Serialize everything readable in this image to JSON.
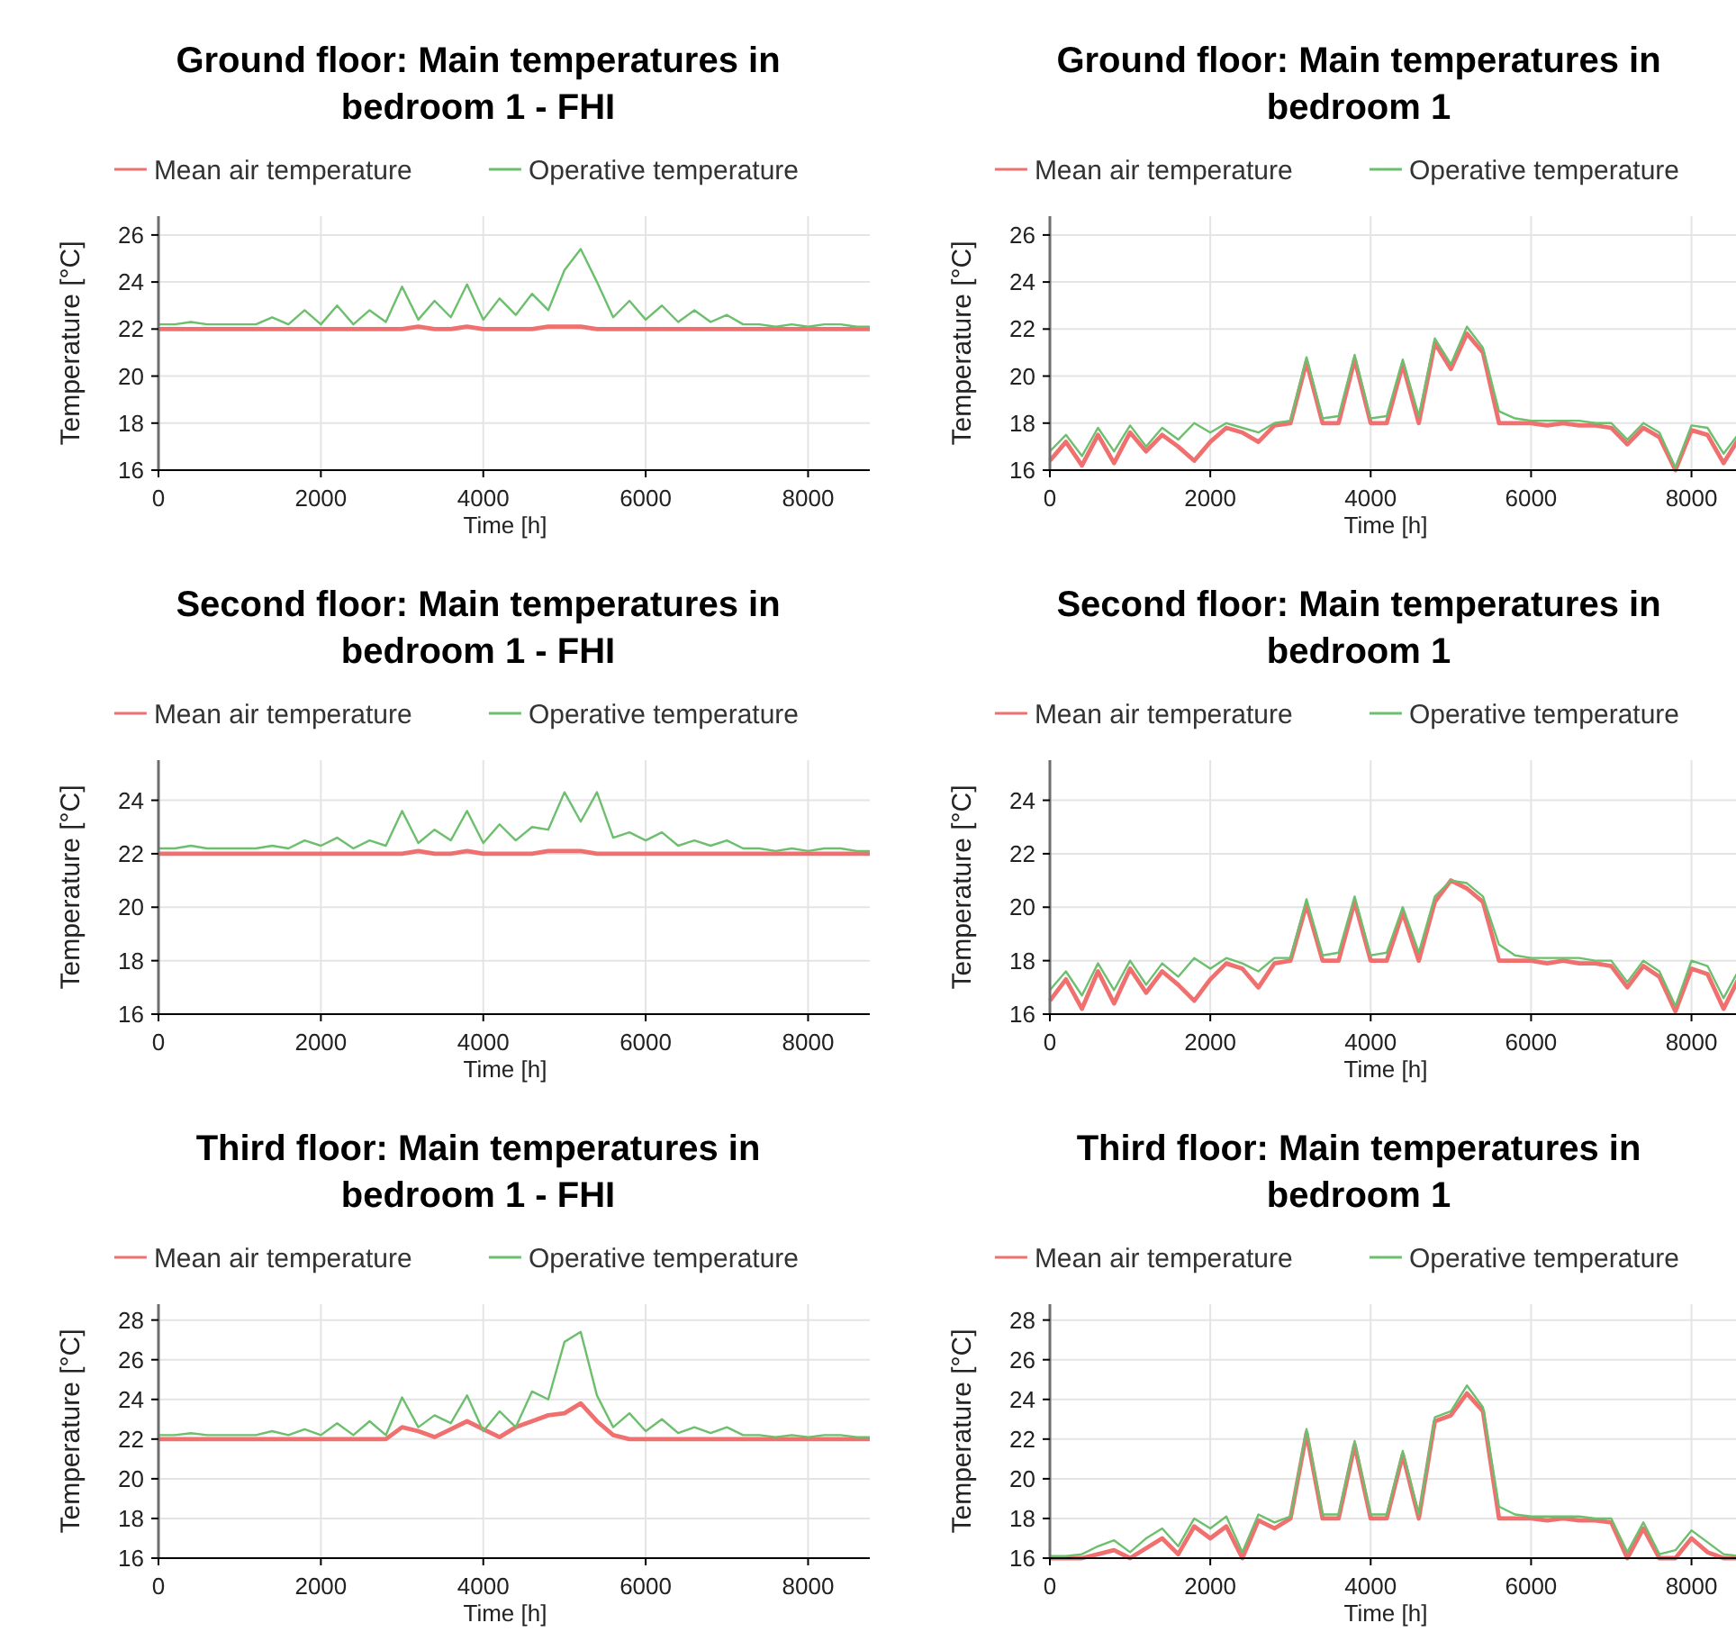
{
  "chart_data": [
    {
      "type": "line",
      "title": "Ground floor: Main temperatures in bedroom 1 - FHI",
      "xlabel": "Time [h]",
      "ylabel": "Temperature [°C]",
      "xlim": [
        0,
        8760
      ],
      "xticks": [
        0,
        2000,
        4000,
        6000,
        8000
      ],
      "ylim": [
        16,
        26.8
      ],
      "yticks": [
        16,
        18,
        20,
        22,
        24,
        26
      ],
      "grid": true,
      "legend": "top",
      "x": [
        0,
        200,
        400,
        600,
        800,
        1000,
        1200,
        1400,
        1600,
        1800,
        2000,
        2200,
        2400,
        2600,
        2800,
        3000,
        3200,
        3400,
        3600,
        3800,
        4000,
        4200,
        4400,
        4600,
        4800,
        5000,
        5200,
        5400,
        5600,
        5800,
        6000,
        6200,
        6400,
        6600,
        6800,
        7000,
        7200,
        7400,
        7600,
        7800,
        8000,
        8200,
        8400,
        8600,
        8760
      ],
      "series": [
        {
          "name": "Mean air temperature",
          "color": "#f07070",
          "values": [
            22.0,
            22.0,
            22.0,
            22.0,
            22.0,
            22.0,
            22.0,
            22.0,
            22.0,
            22.0,
            22.0,
            22.0,
            22.0,
            22.0,
            22.0,
            22.0,
            22.1,
            22.0,
            22.0,
            22.1,
            22.0,
            22.0,
            22.0,
            22.0,
            22.1,
            22.1,
            22.1,
            22.0,
            22.0,
            22.0,
            22.0,
            22.0,
            22.0,
            22.0,
            22.0,
            22.0,
            22.0,
            22.0,
            22.0,
            22.0,
            22.0,
            22.0,
            22.0,
            22.0,
            22.0
          ]
        },
        {
          "name": "Operative temperature",
          "color": "#6cbf6c",
          "values": [
            22.2,
            22.2,
            22.3,
            22.2,
            22.2,
            22.2,
            22.2,
            22.5,
            22.2,
            22.8,
            22.2,
            23.0,
            22.2,
            22.8,
            22.3,
            23.8,
            22.4,
            23.2,
            22.5,
            23.9,
            22.4,
            23.3,
            22.6,
            23.5,
            22.8,
            24.5,
            25.4,
            24.0,
            22.5,
            23.2,
            22.4,
            23.0,
            22.3,
            22.8,
            22.3,
            22.6,
            22.2,
            22.2,
            22.1,
            22.2,
            22.1,
            22.2,
            22.2,
            22.1,
            22.1
          ]
        }
      ]
    },
    {
      "type": "line",
      "title": "Ground floor: Main temperatures in bedroom 1",
      "xlabel": "Time [h]",
      "ylabel": "Temperature [°C]",
      "xlim": [
        0,
        8600
      ],
      "xticks": [
        0,
        2000,
        4000,
        6000,
        8000
      ],
      "ylim": [
        16,
        26.8
      ],
      "yticks": [
        16,
        18,
        20,
        22,
        24,
        26
      ],
      "grid": true,
      "legend": "top",
      "x": [
        0,
        200,
        400,
        600,
        800,
        1000,
        1200,
        1400,
        1600,
        1800,
        2000,
        2200,
        2400,
        2600,
        2800,
        3000,
        3200,
        3400,
        3600,
        3800,
        4000,
        4200,
        4400,
        4600,
        4800,
        5000,
        5200,
        5400,
        5600,
        5800,
        6000,
        6200,
        6400,
        6600,
        6800,
        7000,
        7200,
        7400,
        7600,
        7800,
        8000,
        8200,
        8400,
        8600
      ],
      "series": [
        {
          "name": "Mean air temperature",
          "color": "#f07070",
          "values": [
            16.4,
            17.2,
            16.2,
            17.5,
            16.3,
            17.6,
            16.8,
            17.5,
            17.0,
            16.4,
            17.2,
            17.8,
            17.6,
            17.2,
            17.9,
            18.0,
            20.6,
            18.0,
            18.0,
            20.7,
            18.0,
            18.0,
            20.5,
            18.0,
            21.4,
            20.3,
            21.8,
            21.0,
            18.0,
            18.0,
            18.0,
            17.9,
            18.0,
            17.9,
            17.9,
            17.8,
            17.1,
            17.8,
            17.4,
            16.0,
            17.7,
            17.5,
            16.3,
            17.4
          ]
        },
        {
          "name": "Operative temperature",
          "color": "#6cbf6c",
          "values": [
            16.8,
            17.5,
            16.6,
            17.8,
            16.8,
            17.9,
            17.0,
            17.8,
            17.3,
            18.0,
            17.6,
            18.0,
            17.8,
            17.6,
            18.0,
            18.1,
            20.8,
            18.2,
            18.3,
            20.9,
            18.2,
            18.3,
            20.7,
            18.3,
            21.6,
            20.5,
            22.1,
            21.2,
            18.5,
            18.2,
            18.1,
            18.1,
            18.1,
            18.1,
            18.0,
            18.0,
            17.3,
            18.0,
            17.6,
            16.1,
            17.9,
            17.8,
            16.7,
            17.6
          ]
        }
      ]
    },
    {
      "type": "line",
      "title": "Second floor: Main temperatures in bedroom 1 - FHI",
      "xlabel": "Time [h]",
      "ylabel": "Temperature [°C]",
      "xlim": [
        0,
        8760
      ],
      "xticks": [
        0,
        2000,
        4000,
        6000,
        8000
      ],
      "ylim": [
        16,
        25.5
      ],
      "yticks": [
        16,
        18,
        20,
        22,
        24
      ],
      "grid": true,
      "legend": "top",
      "x": [
        0,
        200,
        400,
        600,
        800,
        1000,
        1200,
        1400,
        1600,
        1800,
        2000,
        2200,
        2400,
        2600,
        2800,
        3000,
        3200,
        3400,
        3600,
        3800,
        4000,
        4200,
        4400,
        4600,
        4800,
        5000,
        5200,
        5400,
        5600,
        5800,
        6000,
        6200,
        6400,
        6600,
        6800,
        7000,
        7200,
        7400,
        7600,
        7800,
        8000,
        8200,
        8400,
        8600,
        8760
      ],
      "series": [
        {
          "name": "Mean air temperature",
          "color": "#f07070",
          "values": [
            22.0,
            22.0,
            22.0,
            22.0,
            22.0,
            22.0,
            22.0,
            22.0,
            22.0,
            22.0,
            22.0,
            22.0,
            22.0,
            22.0,
            22.0,
            22.0,
            22.1,
            22.0,
            22.0,
            22.1,
            22.0,
            22.0,
            22.0,
            22.0,
            22.1,
            22.1,
            22.1,
            22.0,
            22.0,
            22.0,
            22.0,
            22.0,
            22.0,
            22.0,
            22.0,
            22.0,
            22.0,
            22.0,
            22.0,
            22.0,
            22.0,
            22.0,
            22.0,
            22.0,
            22.0
          ]
        },
        {
          "name": "Operative temperature",
          "color": "#6cbf6c",
          "values": [
            22.2,
            22.2,
            22.3,
            22.2,
            22.2,
            22.2,
            22.2,
            22.3,
            22.2,
            22.5,
            22.3,
            22.6,
            22.2,
            22.5,
            22.3,
            23.6,
            22.4,
            22.9,
            22.5,
            23.6,
            22.4,
            23.1,
            22.5,
            23.0,
            22.9,
            24.3,
            23.2,
            24.3,
            22.6,
            22.8,
            22.5,
            22.8,
            22.3,
            22.5,
            22.3,
            22.5,
            22.2,
            22.2,
            22.1,
            22.2,
            22.1,
            22.2,
            22.2,
            22.1,
            22.1
          ]
        }
      ]
    },
    {
      "type": "line",
      "title": "Second floor: Main temperatures in bedroom 1",
      "xlabel": "Time [h]",
      "ylabel": "Temperature [°C]",
      "xlim": [
        0,
        8600
      ],
      "xticks": [
        0,
        2000,
        4000,
        6000,
        8000
      ],
      "ylim": [
        16,
        25.5
      ],
      "yticks": [
        16,
        18,
        20,
        22,
        24
      ],
      "grid": true,
      "legend": "top",
      "x": [
        0,
        200,
        400,
        600,
        800,
        1000,
        1200,
        1400,
        1600,
        1800,
        2000,
        2200,
        2400,
        2600,
        2800,
        3000,
        3200,
        3400,
        3600,
        3800,
        4000,
        4200,
        4400,
        4600,
        4800,
        5000,
        5200,
        5400,
        5600,
        5800,
        6000,
        6200,
        6400,
        6600,
        6800,
        7000,
        7200,
        7400,
        7600,
        7800,
        8000,
        8200,
        8400,
        8600
      ],
      "series": [
        {
          "name": "Mean air temperature",
          "color": "#f07070",
          "values": [
            16.5,
            17.3,
            16.2,
            17.6,
            16.4,
            17.7,
            16.8,
            17.6,
            17.1,
            16.5,
            17.3,
            17.9,
            17.7,
            17.0,
            17.9,
            18.0,
            20.1,
            18.0,
            18.0,
            20.2,
            18.0,
            18.0,
            19.8,
            18.0,
            20.2,
            21.0,
            20.7,
            20.2,
            18.0,
            18.0,
            18.0,
            17.9,
            18.0,
            17.9,
            17.9,
            17.8,
            17.0,
            17.8,
            17.4,
            16.1,
            17.7,
            17.5,
            16.2,
            17.4
          ]
        },
        {
          "name": "Operative temperature",
          "color": "#6cbf6c",
          "values": [
            16.9,
            17.6,
            16.7,
            17.9,
            16.9,
            18.0,
            17.1,
            17.9,
            17.4,
            18.1,
            17.7,
            18.1,
            17.9,
            17.6,
            18.1,
            18.1,
            20.3,
            18.2,
            18.3,
            20.4,
            18.2,
            18.3,
            20.0,
            18.3,
            20.4,
            21.0,
            20.9,
            20.4,
            18.6,
            18.2,
            18.1,
            18.1,
            18.1,
            18.1,
            18.0,
            18.0,
            17.2,
            18.0,
            17.6,
            16.3,
            18.0,
            17.8,
            16.6,
            17.7
          ]
        }
      ]
    },
    {
      "type": "line",
      "title": "Third floor: Main temperatures in bedroom 1 - FHI",
      "xlabel": "Time [h]",
      "ylabel": "Temperature [°C]",
      "xlim": [
        0,
        8760
      ],
      "xticks": [
        0,
        2000,
        4000,
        6000,
        8000
      ],
      "ylim": [
        16,
        28.8
      ],
      "yticks": [
        16,
        18,
        20,
        22,
        24,
        26,
        28
      ],
      "grid": true,
      "legend": "top",
      "x": [
        0,
        200,
        400,
        600,
        800,
        1000,
        1200,
        1400,
        1600,
        1800,
        2000,
        2200,
        2400,
        2600,
        2800,
        3000,
        3200,
        3400,
        3600,
        3800,
        4000,
        4200,
        4400,
        4600,
        4800,
        5000,
        5200,
        5400,
        5600,
        5800,
        6000,
        6200,
        6400,
        6600,
        6800,
        7000,
        7200,
        7400,
        7600,
        7800,
        8000,
        8200,
        8400,
        8600,
        8760
      ],
      "series": [
        {
          "name": "Mean air temperature",
          "color": "#f07070",
          "values": [
            22.0,
            22.0,
            22.0,
            22.0,
            22.0,
            22.0,
            22.0,
            22.0,
            22.0,
            22.0,
            22.0,
            22.0,
            22.0,
            22.0,
            22.0,
            22.6,
            22.4,
            22.1,
            22.5,
            22.9,
            22.5,
            22.1,
            22.6,
            22.9,
            23.2,
            23.3,
            23.8,
            22.9,
            22.2,
            22.0,
            22.0,
            22.0,
            22.0,
            22.0,
            22.0,
            22.0,
            22.0,
            22.0,
            22.0,
            22.0,
            22.0,
            22.0,
            22.0,
            22.0,
            22.0
          ]
        },
        {
          "name": "Operative temperature",
          "color": "#6cbf6c",
          "values": [
            22.2,
            22.2,
            22.3,
            22.2,
            22.2,
            22.2,
            22.2,
            22.4,
            22.2,
            22.5,
            22.2,
            22.8,
            22.2,
            22.9,
            22.2,
            24.1,
            22.6,
            23.2,
            22.8,
            24.2,
            22.4,
            23.4,
            22.6,
            24.4,
            24.0,
            26.9,
            27.4,
            24.2,
            22.6,
            23.3,
            22.4,
            23.0,
            22.3,
            22.6,
            22.3,
            22.6,
            22.2,
            22.2,
            22.1,
            22.2,
            22.1,
            22.2,
            22.2,
            22.1,
            22.1
          ]
        }
      ]
    },
    {
      "type": "line",
      "title": "Third floor: Main temperatures in bedroom 1",
      "xlabel": "Time [h]",
      "ylabel": "Temperature [°C]",
      "xlim": [
        0,
        8600
      ],
      "xticks": [
        0,
        2000,
        4000,
        6000,
        8000
      ],
      "ylim": [
        16,
        28.8
      ],
      "yticks": [
        16,
        18,
        20,
        22,
        24,
        26,
        28
      ],
      "grid": true,
      "legend": "top",
      "x": [
        0,
        200,
        400,
        600,
        800,
        1000,
        1200,
        1400,
        1600,
        1800,
        2000,
        2200,
        2400,
        2600,
        2800,
        3000,
        3200,
        3400,
        3600,
        3800,
        4000,
        4200,
        4400,
        4600,
        4800,
        5000,
        5200,
        5400,
        5600,
        5800,
        6000,
        6200,
        6400,
        6600,
        6800,
        7000,
        7200,
        7400,
        7600,
        7800,
        8000,
        8200,
        8400,
        8600
      ],
      "series": [
        {
          "name": "Mean air temperature",
          "color": "#f07070",
          "values": [
            16.0,
            16.0,
            16.0,
            16.2,
            16.4,
            16.0,
            16.5,
            17.0,
            16.2,
            17.6,
            17.0,
            17.6,
            16.0,
            17.9,
            17.5,
            18.0,
            22.3,
            18.0,
            18.0,
            21.7,
            18.0,
            18.0,
            21.2,
            18.0,
            22.9,
            23.2,
            24.3,
            23.4,
            18.0,
            18.0,
            18.0,
            17.9,
            18.0,
            17.9,
            17.9,
            17.8,
            16.0,
            17.5,
            16.0,
            16.0,
            17.0,
            16.3,
            16.0,
            16.0
          ]
        },
        {
          "name": "Operative temperature",
          "color": "#6cbf6c",
          "values": [
            16.1,
            16.1,
            16.2,
            16.6,
            16.9,
            16.3,
            17.0,
            17.5,
            16.6,
            18.0,
            17.5,
            18.1,
            16.3,
            18.2,
            17.8,
            18.1,
            22.5,
            18.2,
            18.2,
            21.9,
            18.2,
            18.2,
            21.4,
            18.2,
            23.1,
            23.4,
            24.7,
            23.6,
            18.6,
            18.2,
            18.1,
            18.1,
            18.1,
            18.1,
            18.0,
            18.0,
            16.3,
            17.8,
            16.2,
            16.4,
            17.4,
            16.8,
            16.2,
            16.1
          ]
        }
      ]
    }
  ]
}
